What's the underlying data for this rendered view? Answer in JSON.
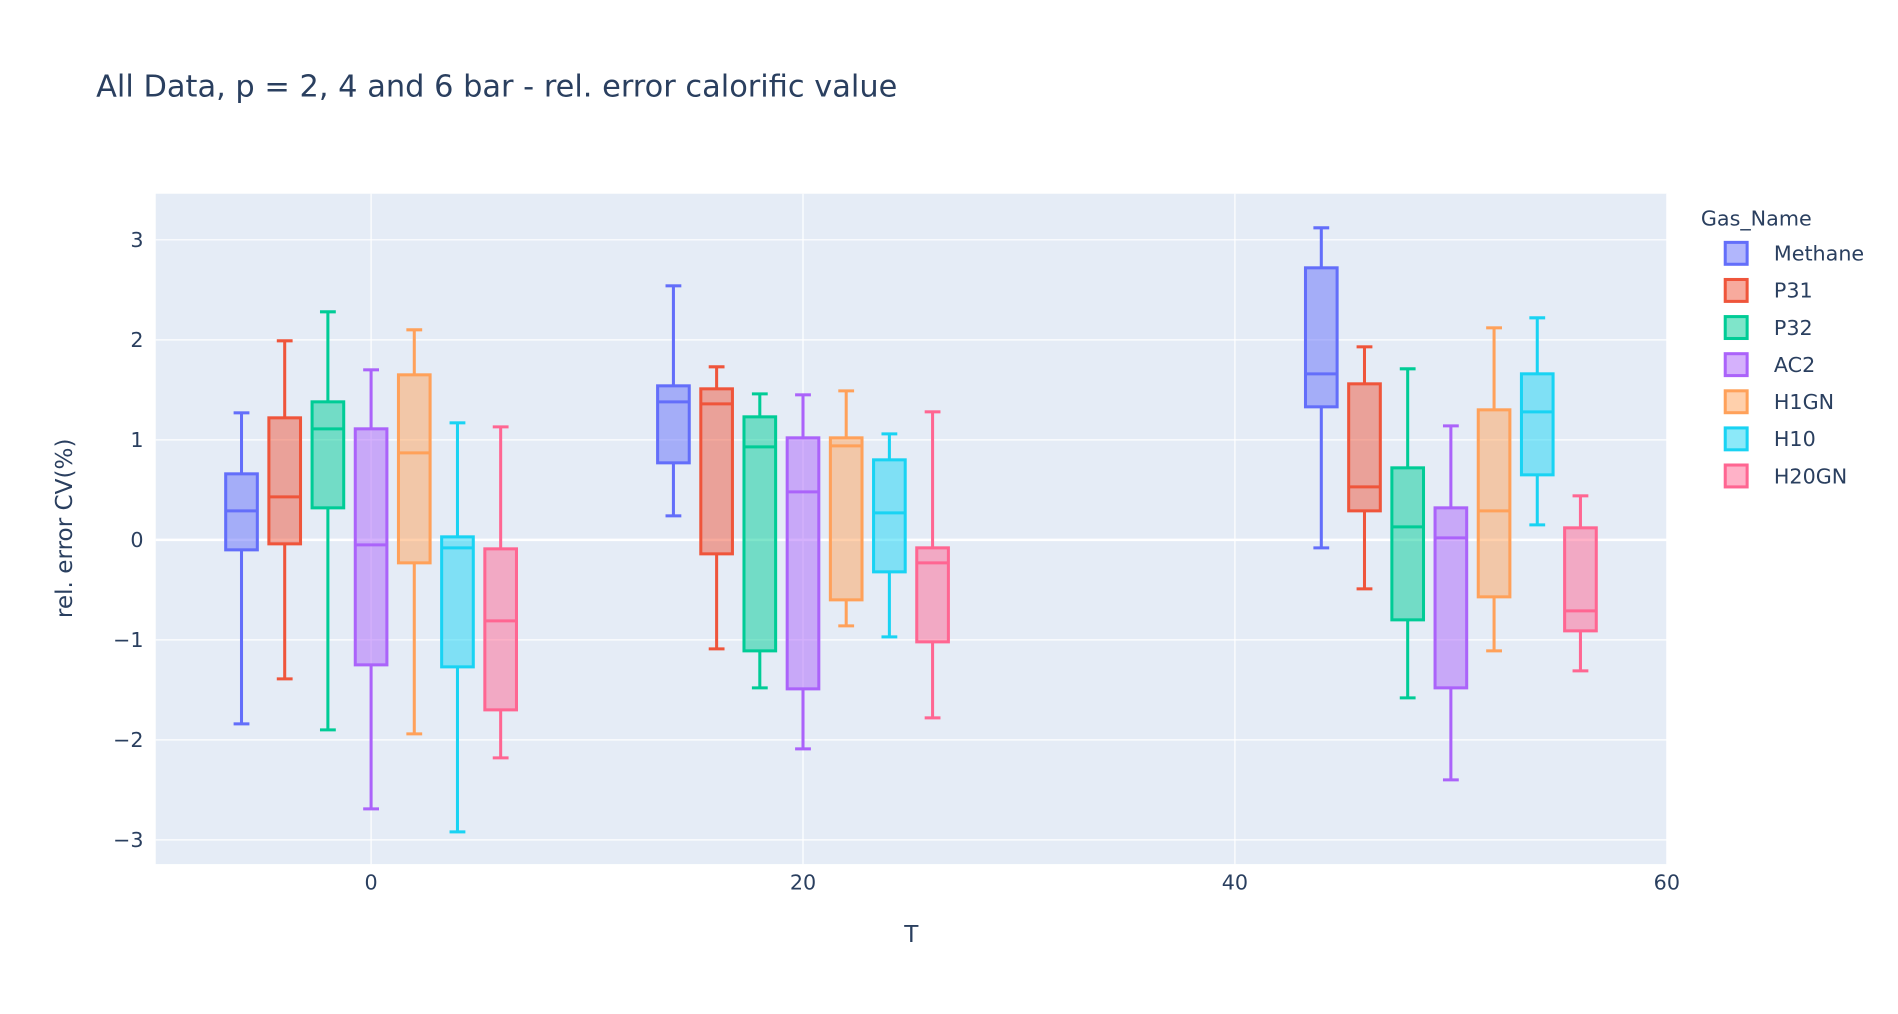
{
  "chart_data": {
    "type": "box",
    "title": "All Data, p = 2, 4 and 6 bar - rel. error calorific value",
    "xlabel": "T",
    "ylabel": "rel. error CV(%)",
    "xlim": [
      -10,
      60
    ],
    "ylim": [
      -3.25,
      3.45
    ],
    "xticks": [
      0,
      20,
      40,
      60
    ],
    "yticks": [
      -3,
      -2,
      -1,
      0,
      1,
      2,
      3
    ],
    "ytick_labels": [
      "−3",
      "−2",
      "−1",
      "0",
      "1",
      "2",
      "3"
    ],
    "grid": true,
    "boxmode": "group",
    "legend": {
      "title": "Gas_Name",
      "placement": "right"
    },
    "x": [
      0,
      20,
      50
    ],
    "series": [
      {
        "name": "Methane",
        "color": "#636efa",
        "boxes": [
          {
            "x": 0,
            "lower": -1.84,
            "q1": -0.1,
            "median": 0.29,
            "q3": 0.66,
            "upper": 1.27
          },
          {
            "x": 20,
            "lower": 0.24,
            "q1": 0.77,
            "median": 1.38,
            "q3": 1.54,
            "upper": 2.54
          },
          {
            "x": 50,
            "lower": -0.08,
            "q1": 1.33,
            "median": 1.66,
            "q3": 2.72,
            "upper": 3.12
          }
        ]
      },
      {
        "name": "P31",
        "color": "#EF553B",
        "boxes": [
          {
            "x": 0,
            "lower": -1.39,
            "q1": -0.04,
            "median": 0.43,
            "q3": 1.22,
            "upper": 1.99
          },
          {
            "x": 20,
            "lower": -1.09,
            "q1": -0.14,
            "median": 1.36,
            "q3": 1.51,
            "upper": 1.73
          },
          {
            "x": 50,
            "lower": -0.49,
            "q1": 0.29,
            "median": 0.53,
            "q3": 1.56,
            "upper": 1.93
          }
        ]
      },
      {
        "name": "P32",
        "color": "#00cc96",
        "boxes": [
          {
            "x": 0,
            "lower": -1.9,
            "q1": 0.32,
            "median": 1.11,
            "q3": 1.38,
            "upper": 2.28
          },
          {
            "x": 20,
            "lower": -1.48,
            "q1": -1.11,
            "median": 0.93,
            "q3": 1.23,
            "upper": 1.46
          },
          {
            "x": 50,
            "lower": -1.58,
            "q1": -0.8,
            "median": 0.13,
            "q3": 0.72,
            "upper": 1.71
          }
        ]
      },
      {
        "name": "AC2",
        "color": "#ab63fa",
        "boxes": [
          {
            "x": 0,
            "lower": -2.69,
            "q1": -1.25,
            "median": -0.05,
            "q3": 1.11,
            "upper": 1.7
          },
          {
            "x": 20,
            "lower": -2.09,
            "q1": -1.49,
            "median": 0.48,
            "q3": 1.02,
            "upper": 1.45
          },
          {
            "x": 50,
            "lower": -2.4,
            "q1": -1.48,
            "median": 0.02,
            "q3": 0.32,
            "upper": 1.14
          }
        ]
      },
      {
        "name": "H1GN",
        "color": "#FFA15A",
        "boxes": [
          {
            "x": 0,
            "lower": -1.94,
            "q1": -0.23,
            "median": 0.87,
            "q3": 1.65,
            "upper": 2.1
          },
          {
            "x": 20,
            "lower": -0.86,
            "q1": -0.6,
            "median": 0.94,
            "q3": 1.02,
            "upper": 1.49
          },
          {
            "x": 50,
            "lower": -1.11,
            "q1": -0.57,
            "median": 0.29,
            "q3": 1.3,
            "upper": 2.12
          }
        ]
      },
      {
        "name": "H10",
        "color": "#19d3f3",
        "boxes": [
          {
            "x": 0,
            "lower": -2.92,
            "q1": -1.27,
            "median": -0.08,
            "q3": 0.03,
            "upper": 1.17
          },
          {
            "x": 20,
            "lower": -0.97,
            "q1": -0.32,
            "median": 0.27,
            "q3": 0.8,
            "upper": 1.06
          },
          {
            "x": 50,
            "lower": 0.15,
            "q1": 0.65,
            "median": 1.28,
            "q3": 1.66,
            "upper": 2.22
          }
        ]
      },
      {
        "name": "H20GN",
        "color": "#FF6692",
        "boxes": [
          {
            "x": 0,
            "lower": -2.18,
            "q1": -1.7,
            "median": -0.81,
            "q3": -0.09,
            "upper": 1.13
          },
          {
            "x": 20,
            "lower": -1.78,
            "q1": -1.02,
            "median": -0.23,
            "q3": -0.08,
            "upper": 1.28
          },
          {
            "x": 50,
            "lower": -1.31,
            "q1": -0.91,
            "median": -0.71,
            "q3": 0.12,
            "upper": 0.44
          }
        ]
      }
    ]
  }
}
